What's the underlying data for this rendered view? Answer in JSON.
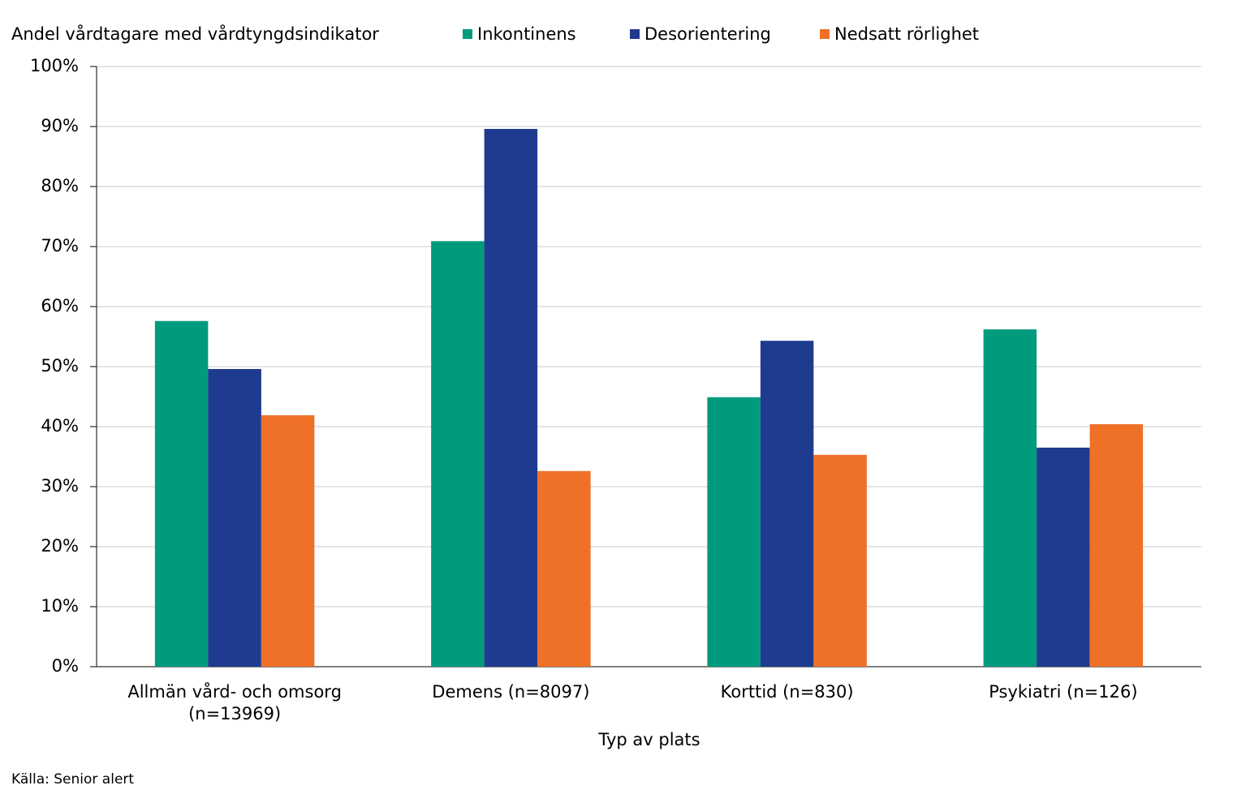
{
  "chart_data": {
    "type": "bar",
    "title": "Andel vårdtagare med vårdtyngdsindikator",
    "x_label": "Typ av plats",
    "source": "Källa: Senior alert",
    "categories": [
      "Allmän vård- och omsorg (n=13969)",
      "Demens (n=8097)",
      "Korttid (n=830)",
      "Psykiatri (n=126)"
    ],
    "series": [
      {
        "name": "Inkontinens",
        "color": "#009b7d",
        "values": [
          57.6,
          70.9,
          44.9,
          56.2
        ]
      },
      {
        "name": "Desorientering",
        "color": "#1f3b8f",
        "values": [
          49.6,
          89.6,
          54.3,
          36.5
        ]
      },
      {
        "name": "Nedsatt rörlighet",
        "color": "#ee7127",
        "values": [
          41.9,
          32.6,
          35.3,
          40.4
        ]
      }
    ],
    "ylim": [
      0,
      100
    ],
    "yticks": [
      {
        "value": 0,
        "label": "0%"
      },
      {
        "value": 10,
        "label": "10%"
      },
      {
        "value": 20,
        "label": "20%"
      },
      {
        "value": 30,
        "label": "30%"
      },
      {
        "value": 40,
        "label": "40%"
      },
      {
        "value": 50,
        "label": "50%"
      },
      {
        "value": 60,
        "label": "60%"
      },
      {
        "value": 70,
        "label": "70%"
      },
      {
        "value": 80,
        "label": "80%"
      },
      {
        "value": 90,
        "label": "90%"
      },
      {
        "value": 100,
        "label": "100%"
      }
    ],
    "grid": true,
    "legend": "top"
  }
}
